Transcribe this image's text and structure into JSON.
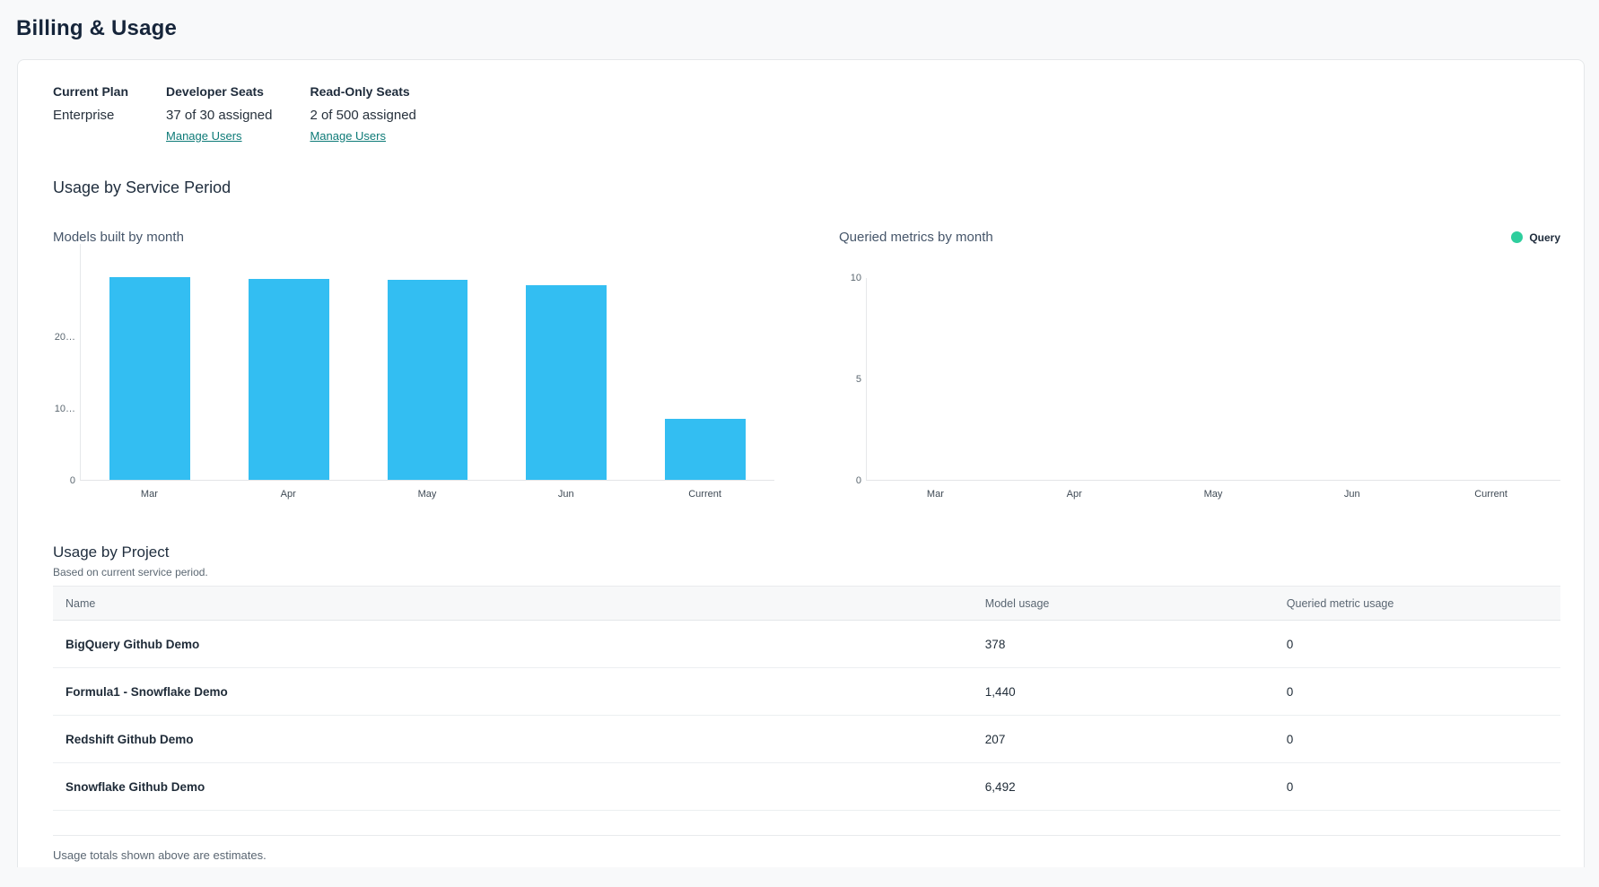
{
  "page": {
    "title": "Billing & Usage"
  },
  "plan_summary": {
    "columns": [
      {
        "label": "Current Plan",
        "value": "Enterprise"
      },
      {
        "label": "Developer Seats",
        "value": "37 of 30 assigned",
        "link": "Manage Users"
      },
      {
        "label": "Read-Only Seats",
        "value": "2 of 500 assigned",
        "link": "Manage Users"
      }
    ]
  },
  "usage_section": {
    "title": "Usage by Service Period"
  },
  "chart_data": [
    {
      "type": "bar",
      "title": "Models built by month",
      "categories": [
        "Mar",
        "Apr",
        "May",
        "Jun",
        "Current"
      ],
      "values": [
        28200,
        28000,
        27900,
        27100,
        8517
      ],
      "bar_color": "#33BEF2",
      "ylim": [
        0,
        33000
      ],
      "yticks": [
        {
          "value": 0,
          "label": "0"
        },
        {
          "value": 10000,
          "label": "10…"
        },
        {
          "value": 20000,
          "label": "20…"
        }
      ],
      "grid": false,
      "legend": null
    },
    {
      "type": "bar",
      "title": "Queried metrics by month",
      "categories": [
        "Mar",
        "Apr",
        "May",
        "Jun",
        "Current"
      ],
      "values": [
        0,
        0,
        0,
        0,
        0
      ],
      "bar_color": "#2ECE9D",
      "ylim": [
        0,
        10
      ],
      "yticks": [
        {
          "value": 0,
          "label": "0"
        },
        {
          "value": 5,
          "label": "5"
        },
        {
          "value": 10,
          "label": "10"
        }
      ],
      "grid": false,
      "legend": {
        "label": "Query",
        "color": "#2ECE9D",
        "position": "top-right"
      }
    }
  ],
  "usage_by_project": {
    "title": "Usage by Project",
    "subtitle": "Based on current service period.",
    "columns": [
      "Name",
      "Model usage",
      "Queried metric usage"
    ],
    "rows": [
      {
        "name": "BigQuery Github Demo",
        "model_usage": "378",
        "queried_metric_usage": "0"
      },
      {
        "name": "Formula1 - Snowflake Demo",
        "model_usage": "1,440",
        "queried_metric_usage": "0"
      },
      {
        "name": "Redshift Github Demo",
        "model_usage": "207",
        "queried_metric_usage": "0"
      },
      {
        "name": "Snowflake Github Demo",
        "model_usage": "6,492",
        "queried_metric_usage": "0"
      }
    ],
    "footer_note": "Usage totals shown above are estimates."
  },
  "colors": {
    "bar_blue": "#33BEF2",
    "legend_green": "#2ECE9D",
    "link_teal": "#0d7a77",
    "heading_navy": "#16253a",
    "page_background": "#f8f9fa"
  }
}
